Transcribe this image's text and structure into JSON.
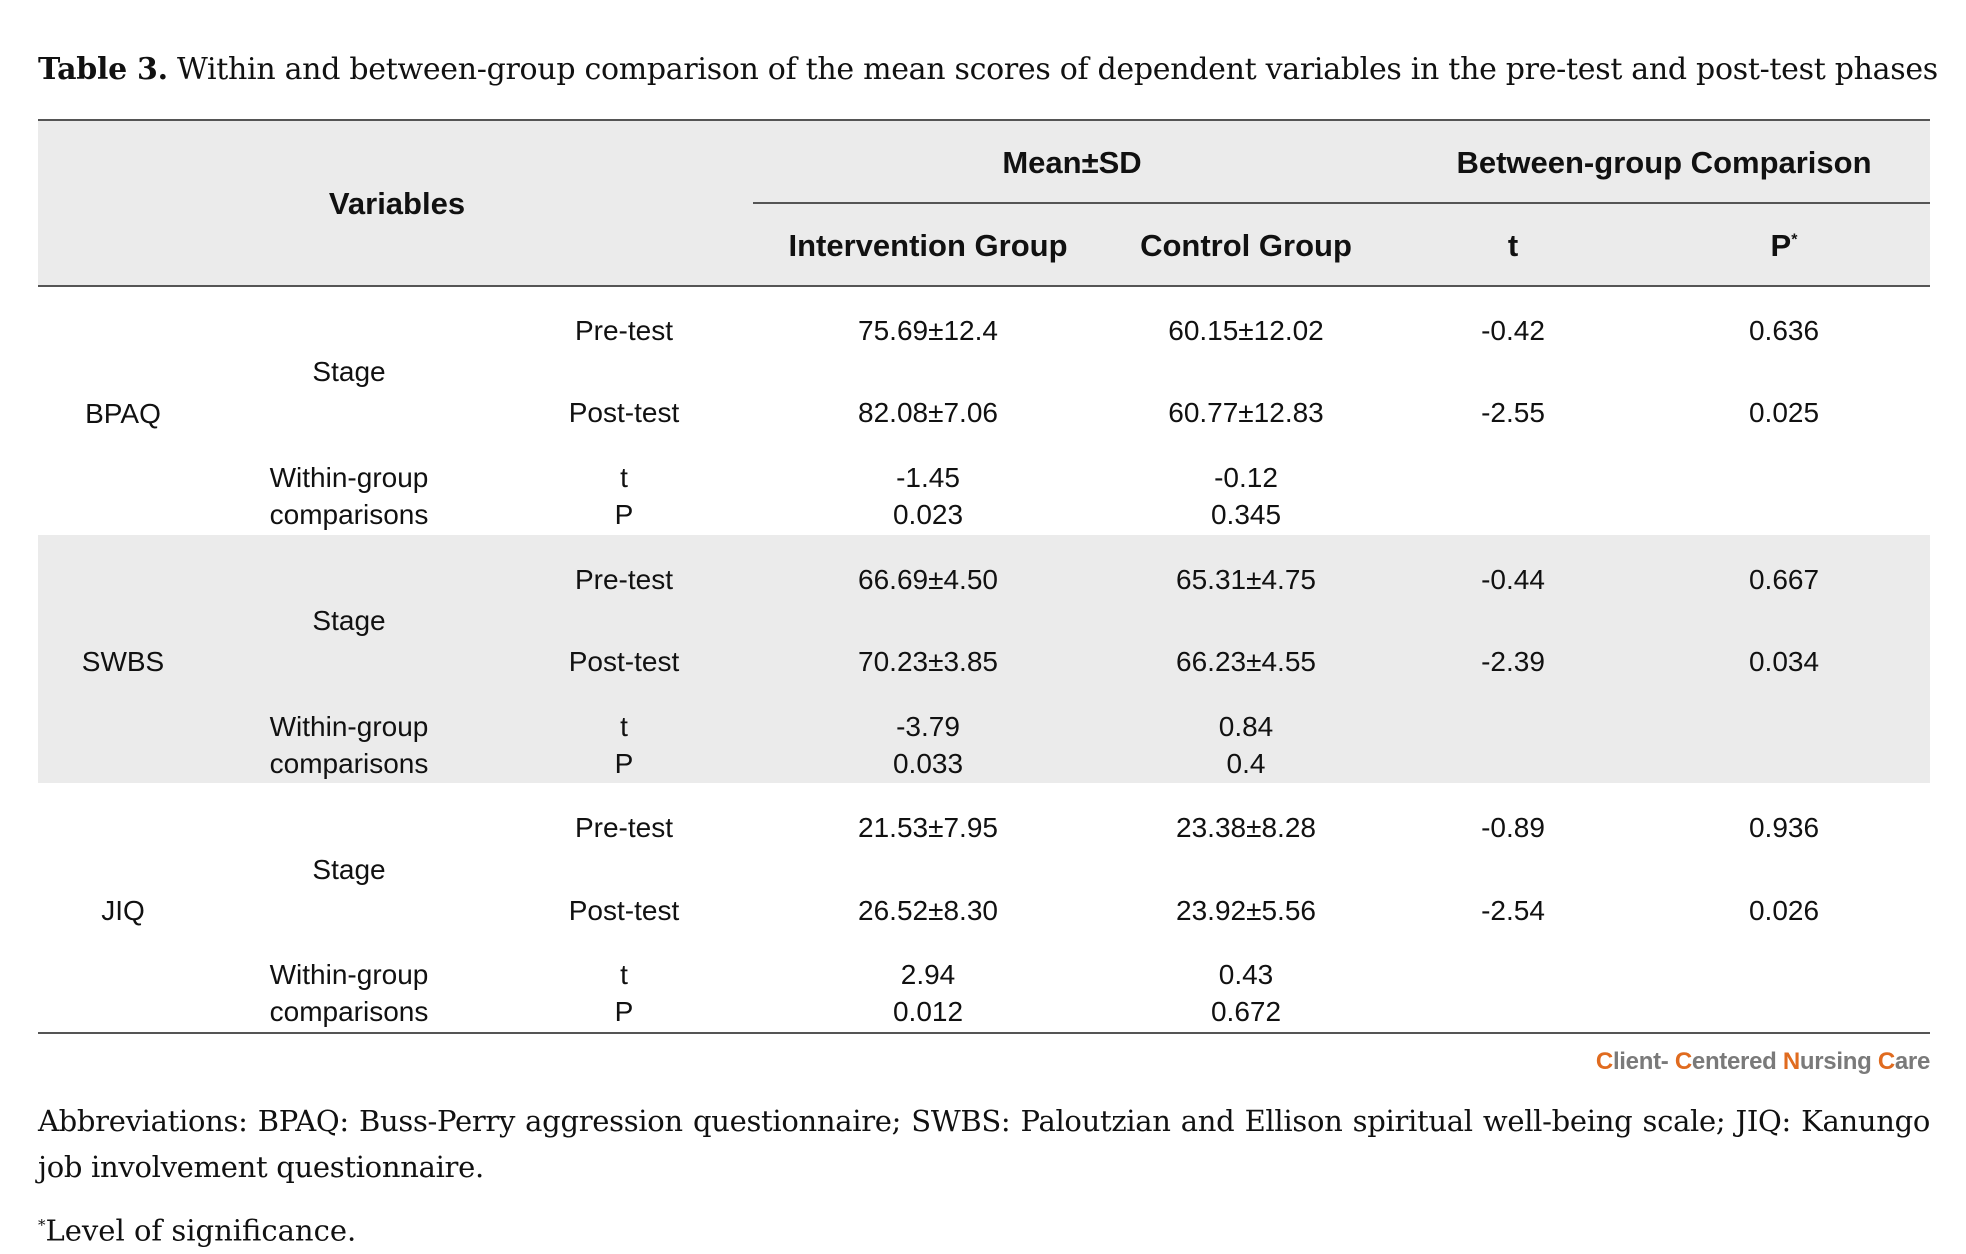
{
  "caption": {
    "number": "Table 3.",
    "text": " Within and between-group comparison of the mean scores of dependent variables in the pre-test and post-test phases"
  },
  "table": {
    "headers": {
      "variables": "Variables",
      "mean_sd": "Mean±SD",
      "between_group": "Between-group Comparison",
      "intervention": "Intervention Group",
      "control": "Control Group",
      "t": "t",
      "p": "P",
      "p_mark": "*"
    },
    "labels": {
      "stage": "Stage",
      "pre": "Pre-test",
      "post": "Post-test",
      "within_1": "Within-group",
      "within_2": "comparisons",
      "t": "t",
      "p": "P"
    },
    "groups": [
      {
        "name": "BPAQ",
        "pre": {
          "intervention": "75.69±12.4",
          "control": "60.15±12.02",
          "t": "-0.42",
          "p": "0.636"
        },
        "post": {
          "intervention": "82.08±7.06",
          "control": "60.77±12.83",
          "t": "-2.55",
          "p": "0.025"
        },
        "within_t": {
          "intervention": "-1.45",
          "control": "-0.12"
        },
        "within_p": {
          "intervention": "0.023",
          "control": "0.345"
        }
      },
      {
        "name": "SWBS",
        "pre": {
          "intervention": "66.69±4.50",
          "control": "65.31±4.75",
          "t": "-0.44",
          "p": "0.667"
        },
        "post": {
          "intervention": "70.23±3.85",
          "control": "66.23±4.55",
          "t": "-2.39",
          "p": "0.034"
        },
        "within_t": {
          "intervention": "-3.79",
          "control": "0.84"
        },
        "within_p": {
          "intervention": "0.033",
          "control": "0.4"
        }
      },
      {
        "name": "JIQ",
        "pre": {
          "intervention": "21.53±7.95",
          "control": "23.38±8.28",
          "t": "-0.89",
          "p": "0.936"
        },
        "post": {
          "intervention": "26.52±8.30",
          "control": "23.92±5.56",
          "t": "-2.54",
          "p": "0.026"
        },
        "within_t": {
          "intervention": "2.94",
          "control": "0.43"
        },
        "within_p": {
          "intervention": "0.012",
          "control": "0.672"
        }
      }
    ]
  },
  "logo": {
    "letter_1": "C",
    "word_1": "lient- ",
    "letter_2": "C",
    "word_2": "entered ",
    "letter_3": "N",
    "word_3": "ursing ",
    "letter_4": "C",
    "word_4": "are"
  },
  "footnotes": {
    "abbreviations": "Abbreviations: BPAQ: Buss-Perry aggression questionnaire; SWBS: Paloutzian and Ellison spiritual well-being scale; JIQ: Kanungo job involvement questionnaire.",
    "sig_mark": "*",
    "significance": "Level of significance."
  },
  "colors": {
    "header_bg": "#ebebeb",
    "band_bg": "#ebebeb",
    "logo_accent": "#e06b1f",
    "logo_text": "#7a7a7a"
  }
}
